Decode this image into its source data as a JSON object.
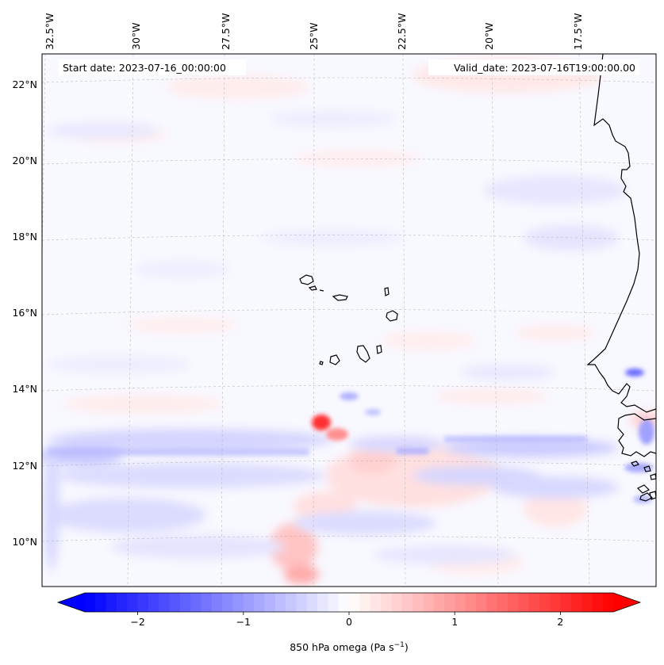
{
  "map": {
    "start_date_text": "Start date: 2023-07-16_00:00:00",
    "valid_date_text": "Valid_date: 2023-07-16T19:00:00.00",
    "lon_labels": [
      "32.5°W",
      "30°W",
      "27.5°W",
      "25°W",
      "22.5°W",
      "20°W",
      "17.5°W"
    ],
    "lat_labels": [
      "22°N",
      "20°N",
      "18°N",
      "16°N",
      "14°N",
      "12°N",
      "10°N"
    ],
    "grid_lines": true,
    "projection": "conic",
    "variable": "850 hPa omega",
    "features": [
      "Cape Verde islands",
      "West African coastline (Mauritania, Senegal, Gambia, Guinea-Bissau)"
    ]
  },
  "colorbar": {
    "ticks": [
      "−2",
      "−1",
      "0",
      "1",
      "2"
    ],
    "tick_values": [
      -2,
      -1,
      0,
      1,
      2
    ],
    "range": [
      -2.5,
      2.5
    ],
    "label_main": "850 hPa omega (Pa s",
    "label_exp": "−1",
    "label_close": ")",
    "colormap": "bwr",
    "colors": {
      "min": "#0000ff",
      "mid": "#ffffff",
      "max": "#ff0000"
    },
    "extend": "both"
  }
}
